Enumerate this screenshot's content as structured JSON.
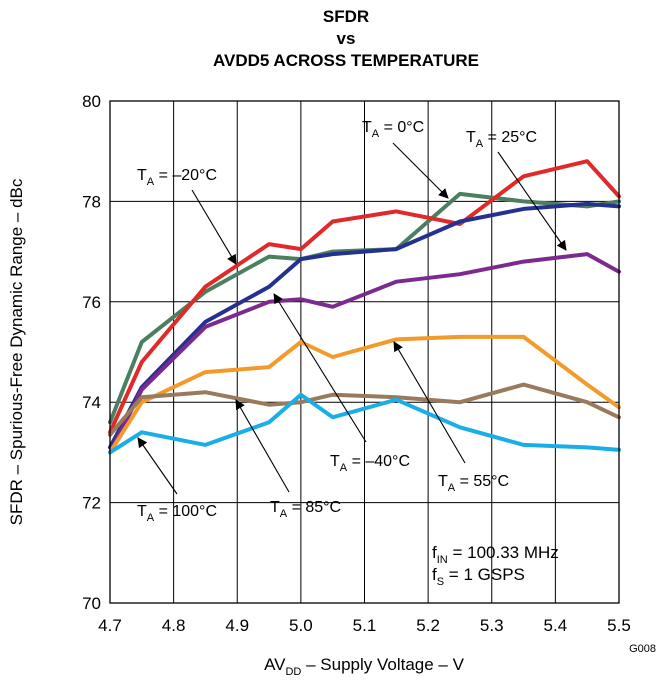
{
  "chart_data": {
    "type": "line",
    "title_lines": [
      "SFDR",
      "vs",
      "AVDD5 ACROSS TEMPERATURE"
    ],
    "ylabel": "SFDR – Spurious-Free Dynamic Range – dBc",
    "xlabel": {
      "pre": "AV",
      "sub": "DD",
      "post": " – Supply Voltage – V"
    },
    "xlim": [
      4.7,
      5.5
    ],
    "ylim": [
      70,
      80
    ],
    "x_ticks": [
      "4.7",
      "4.8",
      "4.9",
      "5.0",
      "5.1",
      "5.2",
      "5.3",
      "5.4",
      "5.5"
    ],
    "y_ticks": [
      "70",
      "72",
      "74",
      "76",
      "78",
      "80"
    ],
    "grid": true,
    "footer_code": "G008",
    "conditions": [
      {
        "pre": "f",
        "sub": "IN",
        "post": " = 100.33 MHz"
      },
      {
        "pre": "f",
        "sub": "S",
        "post": " = 1 GSPS"
      }
    ],
    "series": [
      {
        "name": "T_A = 0°C",
        "color": "#4a8060",
        "x": [
          4.7,
          4.75,
          4.85,
          4.95,
          5.0,
          5.05,
          5.15,
          5.25,
          5.35,
          5.45,
          5.5
        ],
        "y": [
          73.6,
          75.2,
          76.2,
          76.9,
          76.85,
          77.0,
          77.05,
          78.15,
          78.0,
          77.9,
          78.0
        ]
      },
      {
        "name": "T_A = 25°C",
        "color": "#e02a2a",
        "x": [
          4.7,
          4.75,
          4.85,
          4.95,
          5.0,
          5.05,
          5.15,
          5.25,
          5.35,
          5.45,
          5.5
        ],
        "y": [
          73.4,
          74.8,
          76.3,
          77.15,
          77.05,
          77.6,
          77.8,
          77.55,
          78.5,
          78.8,
          78.1
        ]
      },
      {
        "name": "T_A = –20°C",
        "color": "#24318f",
        "x": [
          4.7,
          4.75,
          4.85,
          4.95,
          5.0,
          5.05,
          5.15,
          5.25,
          5.35,
          5.45,
          5.5
        ],
        "y": [
          73.1,
          74.3,
          75.6,
          76.3,
          76.85,
          76.95,
          77.05,
          77.6,
          77.85,
          77.95,
          77.9
        ]
      },
      {
        "name": "T_A = –40°C",
        "color": "#7c2a90",
        "x": [
          4.7,
          4.75,
          4.85,
          4.95,
          5.0,
          5.05,
          5.15,
          5.25,
          5.35,
          5.45,
          5.5
        ],
        "y": [
          73.0,
          74.25,
          75.5,
          76.0,
          76.05,
          75.9,
          76.4,
          76.55,
          76.8,
          76.95,
          76.6
        ]
      },
      {
        "name": "T_A = 55°C",
        "color": "#f29a2a",
        "x": [
          4.7,
          4.75,
          4.85,
          4.95,
          5.0,
          5.05,
          5.15,
          5.25,
          5.35,
          5.45,
          5.5
        ],
        "y": [
          73.0,
          74.0,
          74.6,
          74.7,
          75.2,
          74.9,
          75.25,
          75.3,
          75.3,
          74.35,
          73.9
        ]
      },
      {
        "name": "T_A = 85°C",
        "color": "#9a7a5c",
        "x": [
          4.7,
          4.75,
          4.85,
          4.95,
          5.0,
          5.05,
          5.15,
          5.25,
          5.35,
          5.45,
          5.5
        ],
        "y": [
          73.35,
          74.1,
          74.2,
          73.95,
          74.0,
          74.15,
          74.1,
          74.0,
          74.35,
          74.0,
          73.7
        ]
      },
      {
        "name": "T_A = 100°C",
        "color": "#1aaee8",
        "x": [
          4.7,
          4.75,
          4.85,
          4.95,
          5.0,
          5.05,
          5.15,
          5.25,
          5.35,
          5.45,
          5.5
        ],
        "y": [
          73.0,
          73.4,
          73.15,
          73.6,
          74.15,
          73.7,
          74.05,
          73.5,
          73.15,
          73.1,
          73.05
        ]
      }
    ],
    "annotations": [
      {
        "text": {
          "pre": "T",
          "sub": "A",
          "post": " = 0°C"
        }
      },
      {
        "text": {
          "pre": "T",
          "sub": "A",
          "post": " = 25°C"
        }
      },
      {
        "text": {
          "pre": "T",
          "sub": "A",
          "post": " = –20°C"
        }
      },
      {
        "text": {
          "pre": "T",
          "sub": "A",
          "post": " = –40°C"
        }
      },
      {
        "text": {
          "pre": "T",
          "sub": "A",
          "post": " = 55°C"
        }
      },
      {
        "text": {
          "pre": "T",
          "sub": "A",
          "post": " = 85°C"
        }
      },
      {
        "text": {
          "pre": "T",
          "sub": "A",
          "post": " = 100°C"
        }
      }
    ]
  }
}
